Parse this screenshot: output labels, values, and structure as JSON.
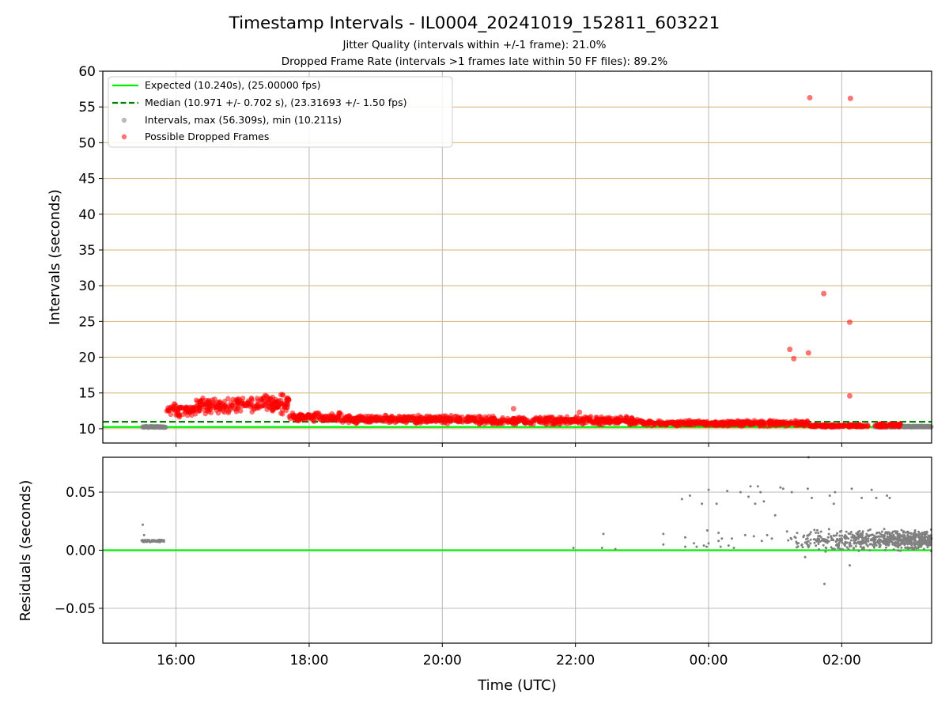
{
  "title": "Timestamp Intervals - IL0004_20241019_152811_603221",
  "subtitle_1": "Jitter Quality (intervals within +/-1 frame): 21.0%",
  "subtitle_2": "Dropped Frame Rate (intervals >1 frames late within 50 FF files): 89.2%",
  "colors": {
    "expected": "#00ee00",
    "median": "#008000",
    "dropped": "#ff0000",
    "intervals": "#808080",
    "hgrid_top": "#d4b370",
    "grid": "#b0b0b0"
  },
  "chart_data": [
    {
      "type": "scatter",
      "ylabel": "Intervals (seconds)",
      "x_unit": "hours since 00:00 UTC of 2024-10-19",
      "xlim": [
        14.9,
        27.35
      ],
      "ylim": [
        8,
        60
      ],
      "yticks": [
        10,
        15,
        20,
        25,
        30,
        35,
        40,
        45,
        50,
        55,
        60
      ],
      "xtick_values": [
        16,
        18,
        20,
        22,
        24,
        26
      ],
      "grid": true,
      "legend_position": "upper-left",
      "legend": [
        {
          "label": "Expected (10.240s), (25.00000 fps)",
          "style": "line"
        },
        {
          "label": "Median (10.971 +/- 0.702 s), (23.31693 +/- 1.50 fps)",
          "style": "dashed"
        },
        {
          "label": "Intervals, max (56.309s), min (10.211s)",
          "style": "grey-dot"
        },
        {
          "label": "Possible Dropped Frames",
          "style": "red-dot"
        }
      ],
      "expected": 10.24,
      "median": 10.971,
      "intervals_max": 56.309,
      "intervals_min": 10.211,
      "normal_ranges": [
        {
          "x_start": 15.5,
          "x_end": 15.85,
          "y": 10.25
        },
        {
          "x_start": 26.5,
          "x_end": 27.35,
          "y": 10.3
        }
      ],
      "dropped_bands": [
        {
          "x_start": 15.85,
          "x_end": 16.3,
          "y_low": 11.6,
          "y_high": 13.6
        },
        {
          "x_start": 16.3,
          "x_end": 17.0,
          "y_low": 12.0,
          "y_high": 14.5
        },
        {
          "x_start": 17.0,
          "x_end": 17.7,
          "y_low": 12.0,
          "y_high": 15.0
        },
        {
          "x_start": 17.7,
          "x_end": 18.5,
          "y_low": 11.0,
          "y_high": 12.3
        },
        {
          "x_start": 18.5,
          "x_end": 20.5,
          "y_low": 10.7,
          "y_high": 11.9
        },
        {
          "x_start": 20.5,
          "x_end": 23.0,
          "y_low": 10.5,
          "y_high": 11.8
        },
        {
          "x_start": 23.0,
          "x_end": 25.5,
          "y_low": 10.3,
          "y_high": 11.2
        },
        {
          "x_start": 25.5,
          "x_end": 26.4,
          "y_low": 10.2,
          "y_high": 10.6
        },
        {
          "x_start": 26.5,
          "x_end": 26.9,
          "y_low": 10.2,
          "y_high": 10.8
        }
      ],
      "dropped_outliers": [
        {
          "x": 25.52,
          "y": 56.3
        },
        {
          "x": 26.13,
          "y": 56.2
        },
        {
          "x": 25.73,
          "y": 28.9
        },
        {
          "x": 26.12,
          "y": 24.9
        },
        {
          "x": 25.22,
          "y": 21.1
        },
        {
          "x": 25.28,
          "y": 19.8
        },
        {
          "x": 25.5,
          "y": 20.6
        },
        {
          "x": 26.12,
          "y": 14.6
        },
        {
          "x": 21.07,
          "y": 12.8
        },
        {
          "x": 22.06,
          "y": 12.3
        }
      ]
    },
    {
      "type": "scatter",
      "ylabel": "Residuals (seconds)",
      "xlabel": "Time (UTC)",
      "xlim": [
        14.9,
        27.35
      ],
      "ylim": [
        -0.08,
        0.08
      ],
      "yticks": [
        -0.05,
        0.0,
        0.05
      ],
      "ytick_labels": [
        "−0.05",
        "0.00",
        "0.05"
      ],
      "xtick_values": [
        16,
        18,
        20,
        22,
        24,
        26
      ],
      "xtick_labels": [
        "16:00",
        "18:00",
        "20:00",
        "22:00",
        "00:00",
        "02:00"
      ],
      "grid": true,
      "zero_line": 0.0,
      "cluster_early": {
        "x_start": 15.48,
        "x_end": 15.82,
        "y_center": 0.008,
        "spread": 0.002
      },
      "cluster_late": {
        "x_start": 25.1,
        "x_end": 27.35,
        "y_center": 0.009,
        "spread": 0.007
      },
      "sparse_points": [
        {
          "x": 15.5,
          "y": 0.022
        },
        {
          "x": 15.52,
          "y": 0.013
        },
        {
          "x": 21.97,
          "y": 0.002
        },
        {
          "x": 22.42,
          "y": 0.014
        },
        {
          "x": 22.4,
          "y": 0.002
        },
        {
          "x": 22.6,
          "y": 0.001
        },
        {
          "x": 23.32,
          "y": 0.014
        },
        {
          "x": 23.32,
          "y": 0.005
        },
        {
          "x": 23.6,
          "y": 0.044
        },
        {
          "x": 23.72,
          "y": 0.047
        },
        {
          "x": 23.65,
          "y": 0.011
        },
        {
          "x": 23.65,
          "y": 0.003
        },
        {
          "x": 23.78,
          "y": 0.006
        },
        {
          "x": 23.82,
          "y": 0.003
        },
        {
          "x": 23.9,
          "y": 0.04
        },
        {
          "x": 23.93,
          "y": 0.004
        },
        {
          "x": 23.97,
          "y": 0.003
        },
        {
          "x": 23.98,
          "y": 0.017
        },
        {
          "x": 24.0,
          "y": 0.052
        },
        {
          "x": 24.0,
          "y": 0.006
        },
        {
          "x": 24.12,
          "y": 0.04
        },
        {
          "x": 24.15,
          "y": 0.008
        },
        {
          "x": 24.15,
          "y": 0.015
        },
        {
          "x": 24.18,
          "y": 0.003
        },
        {
          "x": 24.2,
          "y": 0.01
        },
        {
          "x": 24.28,
          "y": 0.051
        },
        {
          "x": 24.3,
          "y": 0.004
        },
        {
          "x": 24.35,
          "y": 0.01
        },
        {
          "x": 24.38,
          "y": 0.002
        },
        {
          "x": 24.48,
          "y": 0.05
        },
        {
          "x": 24.55,
          "y": 0.013
        },
        {
          "x": 24.6,
          "y": 0.046
        },
        {
          "x": 24.63,
          "y": 0.055
        },
        {
          "x": 24.68,
          "y": 0.012
        },
        {
          "x": 24.7,
          "y": 0.04
        },
        {
          "x": 24.74,
          "y": 0.055
        },
        {
          "x": 24.78,
          "y": 0.05
        },
        {
          "x": 24.8,
          "y": 0.008
        },
        {
          "x": 24.83,
          "y": 0.042
        },
        {
          "x": 24.88,
          "y": 0.013
        },
        {
          "x": 24.95,
          "y": 0.01
        },
        {
          "x": 25.0,
          "y": 0.03
        },
        {
          "x": 25.08,
          "y": 0.054
        },
        {
          "x": 25.12,
          "y": 0.053
        },
        {
          "x": 25.25,
          "y": 0.05
        },
        {
          "x": 25.5,
          "y": 0.08
        },
        {
          "x": 25.49,
          "y": 0.053
        },
        {
          "x": 25.55,
          "y": 0.045
        },
        {
          "x": 25.82,
          "y": 0.047
        },
        {
          "x": 25.9,
          "y": 0.05
        },
        {
          "x": 25.88,
          "y": 0.04
        },
        {
          "x": 26.15,
          "y": 0.053
        },
        {
          "x": 26.3,
          "y": 0.045
        },
        {
          "x": 26.45,
          "y": 0.052
        },
        {
          "x": 26.52,
          "y": 0.045
        },
        {
          "x": 26.68,
          "y": 0.047
        },
        {
          "x": 26.72,
          "y": 0.045
        },
        {
          "x": 25.74,
          "y": -0.029
        },
        {
          "x": 26.12,
          "y": -0.013
        },
        {
          "x": 25.45,
          "y": -0.006
        }
      ]
    }
  ]
}
